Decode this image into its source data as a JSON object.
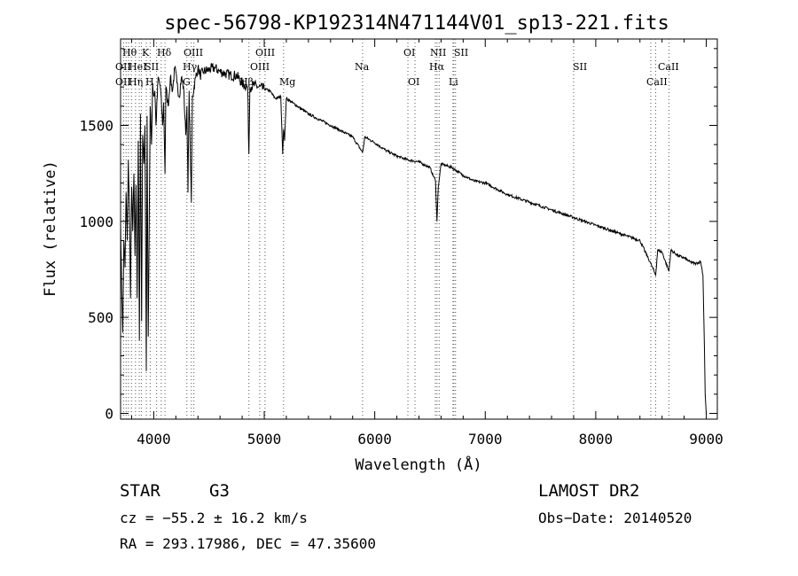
{
  "chart_data": {
    "type": "line",
    "title": "spec-56798-KP192314N471144V01_sp13-221.fits",
    "xlabel": "Wavelength (Å)",
    "ylabel": "Flux (relative)",
    "xlim": [
      3700,
      9100
    ],
    "ylim": [
      -30,
      1950
    ],
    "x_ticks": [
      4000,
      5000,
      6000,
      7000,
      8000,
      9000
    ],
    "y_ticks": [
      0,
      500,
      1000,
      1500
    ],
    "grid": false,
    "legend": "none",
    "line_color": "#000000",
    "series": [
      {
        "x": [
          3700,
          3710,
          3720,
          3730,
          3740,
          3750,
          3760,
          3770,
          3780,
          3790,
          3800,
          3810,
          3820,
          3830,
          3840,
          3850,
          3860,
          3870,
          3880,
          3890,
          3900,
          3910,
          3920,
          3933,
          3940,
          3950,
          3968,
          3980,
          3990,
          4000,
          4010,
          4020,
          4040,
          4060,
          4080,
          4090,
          4102,
          4110,
          4130,
          4150,
          4170,
          4190,
          4210,
          4230,
          4250,
          4270,
          4290,
          4300,
          4310,
          4320,
          4330,
          4340,
          4350,
          4380,
          4400,
          4420,
          4450,
          4500,
          4550,
          4600,
          4650,
          4700,
          4750,
          4800,
          4850,
          4861,
          4870,
          4900,
          4950,
          5000,
          5050,
          5100,
          5150,
          5167,
          5175,
          5184,
          5200,
          5250,
          5300,
          5400,
          5500,
          5600,
          5700,
          5800,
          5889,
          5896,
          5910,
          6000,
          6100,
          6200,
          6300,
          6400,
          6500,
          6550,
          6563,
          6575,
          6600,
          6700,
          6800,
          6900,
          7000,
          7200,
          7400,
          7600,
          7800,
          8000,
          8200,
          8400,
          8498,
          8542,
          8560,
          8600,
          8662,
          8680,
          8750,
          8800,
          8850,
          8900,
          8950,
          8970,
          8980,
          8990,
          9000
        ],
        "y": [
          1000,
          650,
          420,
          900,
          760,
          1150,
          900,
          1320,
          1050,
          600,
          1180,
          950,
          1250,
          820,
          1190,
          600,
          1420,
          380,
          1560,
          480,
          1450,
          1300,
          1500,
          220,
          1550,
          400,
          1600,
          1400,
          1720,
          1650,
          1680,
          1500,
          1750,
          1700,
          1500,
          1620,
          1250,
          1700,
          1600,
          1750,
          1680,
          1800,
          1720,
          1650,
          1750,
          1700,
          1450,
          1600,
          1150,
          1680,
          1400,
          1100,
          1650,
          1750,
          1800,
          1760,
          1780,
          1790,
          1800,
          1780,
          1770,
          1760,
          1760,
          1720,
          1700,
          1350,
          1700,
          1710,
          1700,
          1690,
          1680,
          1640,
          1650,
          1350,
          1480,
          1420,
          1640,
          1620,
          1600,
          1560,
          1530,
          1500,
          1470,
          1440,
          1360,
          1380,
          1440,
          1410,
          1370,
          1340,
          1320,
          1310,
          1280,
          1210,
          1000,
          1180,
          1300,
          1280,
          1240,
          1210,
          1200,
          1140,
          1100,
          1060,
          1020,
          980,
          940,
          900,
          780,
          720,
          850,
          840,
          740,
          850,
          820,
          810,
          790,
          780,
          790,
          720,
          450,
          100,
          0
        ]
      }
    ],
    "line_labels": {
      "row1": [
        "Hθ",
        "K",
        "Hδ",
        "OIII",
        "OIII",
        "OI",
        "NII",
        "SII"
      ],
      "row2": [
        "OII",
        "HeI",
        "SII",
        "Hγ",
        "OIII",
        "Na",
        "Hα",
        "SII",
        "CaII"
      ],
      "row3": [
        "OII",
        "Hη",
        "H",
        "G",
        "Hβ",
        "Mg",
        "OI",
        "Li",
        "CaII"
      ]
    },
    "footer": {
      "class_label": "STAR",
      "subclass": "G3",
      "survey": "LAMOST DR2",
      "cz": "cz = −55.2 ± 16.2 km/s",
      "obs_date": "Obs−Date: 20140520",
      "radec": "RA = 293.17986, DEC =  47.35600"
    }
  }
}
